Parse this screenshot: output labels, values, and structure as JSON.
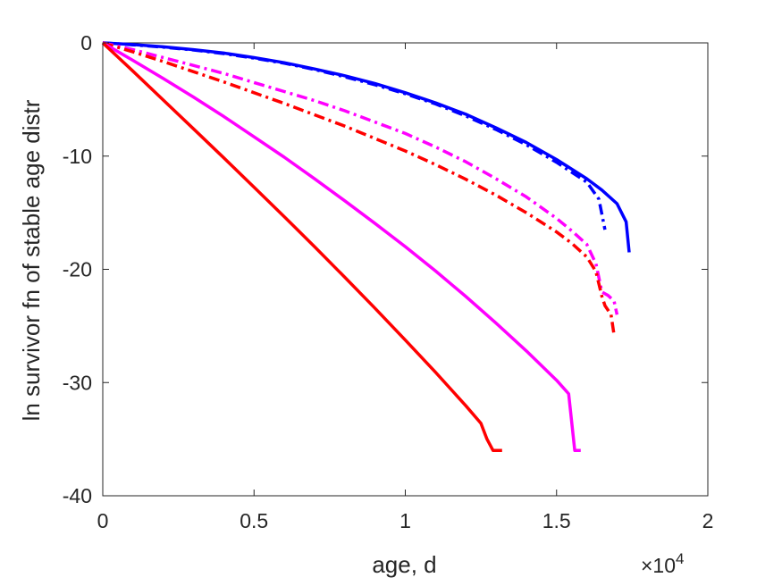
{
  "chart_data": {
    "type": "line",
    "title": "",
    "xlabel": "age, d",
    "ylabel": "ln survivor fn of stable age distr",
    "x_exponent_label": "×10",
    "x_exponent_power": "4",
    "xlim": [
      0,
      20000
    ],
    "ylim": [
      -40,
      0
    ],
    "x_ticks": [
      0,
      5000,
      10000,
      15000,
      20000
    ],
    "x_tick_labels": [
      "0",
      "0.5",
      "1",
      "1.5",
      "2"
    ],
    "y_ticks": [
      0,
      -10,
      -20,
      -30,
      -40
    ],
    "y_tick_labels": [
      "0",
      "-10",
      "-20",
      "-30",
      "-40"
    ],
    "grid": false,
    "legend": "none",
    "series": [
      {
        "color": "#0000ff",
        "style": "solid",
        "x": [
          0,
          1000,
          2000,
          3000,
          4000,
          5000,
          6000,
          7000,
          8000,
          9000,
          10000,
          11000,
          12000,
          13000,
          14000,
          15000,
          16000,
          16500,
          17000,
          17300,
          17400
        ],
        "y": [
          0,
          -0.15,
          -0.35,
          -0.6,
          -0.9,
          -1.3,
          -1.75,
          -2.3,
          -2.9,
          -3.6,
          -4.4,
          -5.3,
          -6.3,
          -7.5,
          -8.8,
          -10.3,
          -12.0,
          -13.0,
          -14.2,
          -15.8,
          -18.5
        ]
      },
      {
        "color": "#0000ff",
        "style": "dashdot",
        "x": [
          0,
          1000,
          2000,
          3000,
          4000,
          5000,
          6000,
          7000,
          8000,
          9000,
          10000,
          11000,
          12000,
          13000,
          14000,
          15000,
          16000,
          16400,
          16600
        ],
        "y": [
          0,
          -0.17,
          -0.38,
          -0.63,
          -0.95,
          -1.35,
          -1.8,
          -2.35,
          -3.0,
          -3.7,
          -4.5,
          -5.4,
          -6.45,
          -7.65,
          -9.0,
          -10.55,
          -12.3,
          -13.8,
          -16.5
        ]
      },
      {
        "color": "#ff00ff",
        "style": "dashdot",
        "x": [
          0,
          1000,
          2000,
          3000,
          4000,
          5000,
          6000,
          7000,
          8000,
          9000,
          10000,
          11000,
          12000,
          13000,
          14000,
          15000,
          15500,
          16000,
          16300,
          16500,
          16700,
          16900,
          17000
        ],
        "y": [
          0,
          -0.6,
          -1.3,
          -2.0,
          -2.7,
          -3.5,
          -4.3,
          -5.1,
          -6.0,
          -7.0,
          -8.0,
          -9.2,
          -10.5,
          -12.0,
          -13.6,
          -15.5,
          -16.6,
          -17.8,
          -19.5,
          -22.0,
          -22.3,
          -22.8,
          -24.0
        ]
      },
      {
        "color": "#ff0000",
        "style": "dashdot",
        "x": [
          0,
          1000,
          2000,
          3000,
          4000,
          5000,
          6000,
          7000,
          8000,
          9000,
          10000,
          11000,
          12000,
          13000,
          14000,
          15000,
          15500,
          16000,
          16300,
          16500,
          16600,
          16800,
          16900
        ],
        "y": [
          0,
          -0.8,
          -1.65,
          -2.55,
          -3.45,
          -4.4,
          -5.35,
          -6.35,
          -7.35,
          -8.45,
          -9.55,
          -10.75,
          -12.05,
          -13.45,
          -15.0,
          -16.7,
          -17.7,
          -18.9,
          -20.2,
          -22.4,
          -23.2,
          -24.0,
          -25.8
        ]
      },
      {
        "color": "#ff00ff",
        "style": "solid",
        "x": [
          0,
          1000,
          2000,
          3000,
          4000,
          5000,
          6000,
          7000,
          8000,
          9000,
          10000,
          11000,
          12000,
          13000,
          14000,
          15000,
          15400,
          15600,
          15800
        ],
        "y": [
          0,
          -1.55,
          -3.15,
          -4.8,
          -6.5,
          -8.3,
          -10.1,
          -12.0,
          -13.95,
          -15.95,
          -18.0,
          -20.15,
          -22.4,
          -24.75,
          -27.2,
          -29.8,
          -31.0,
          -36.0,
          -36.0
        ]
      },
      {
        "color": "#ff0000",
        "style": "solid",
        "x": [
          0,
          1000,
          2000,
          3000,
          4000,
          5000,
          6000,
          7000,
          8000,
          9000,
          10000,
          11000,
          12000,
          12500,
          12700,
          12900,
          13200
        ],
        "y": [
          0,
          -2.5,
          -5.05,
          -7.6,
          -10.15,
          -12.75,
          -15.35,
          -18.0,
          -20.7,
          -23.45,
          -26.25,
          -29.1,
          -32.05,
          -33.6,
          -35.0,
          -36.0,
          -36.0
        ]
      }
    ]
  }
}
